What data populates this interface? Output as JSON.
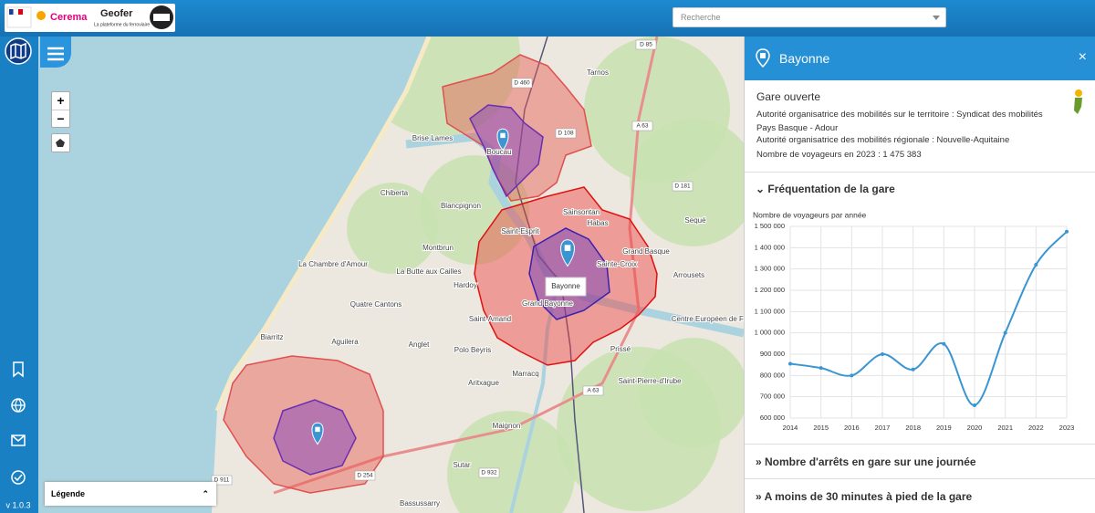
{
  "header": {
    "logo_left": "Cerema",
    "logo_title": "Geofer",
    "logo_subtitle": "La plateforme du ferroviaire",
    "search_placeholder": "Recherche"
  },
  "sidebar": {
    "version": "v 1.0.3"
  },
  "map": {
    "zoom_in": "+",
    "zoom_out": "−",
    "legend": "Légende",
    "popup": "Bayonne",
    "labels": [
      "Tarnos",
      "Boucau",
      "Brise Lames",
      "Chiberta",
      "Blancpignon",
      "Montbrun",
      "La Chambre d'Amour",
      "La Butte aux Cailles",
      "Quatre Cantons",
      "Hardoy",
      "Biarritz",
      "Aguilera",
      "Anglet",
      "Polo Beyris",
      "Saint-Amand",
      "Marracq",
      "Aritxague",
      "Maignon",
      "Sutar",
      "Bassussarry",
      "Prissé",
      "Saint-Pierre-d'Irube",
      "Centre Européen de Fret",
      "Arrousets",
      "Sequé",
      "Grand Basque",
      "Sainte-Croix",
      "Habas",
      "Sainsontan",
      "Grand Bayonne",
      "Saint-Esprit"
    ],
    "roads": [
      "D 85",
      "D 460",
      "D 108",
      "A 63",
      "D 181",
      "D 911",
      "D 254",
      "D 932",
      "A 63"
    ]
  },
  "panel": {
    "title": "Bayonne",
    "close": "×",
    "status": "Gare ouverte",
    "info": [
      "Autorité organisatrice des mobilités sur le territoire : Syndicat des mobilités Pays Basque - Adour",
      "Autorité organisatrice des mobilités régionale : Nouvelle-Aquitaine",
      "Nombre de voyageurs en 2023 : 1 475 383"
    ],
    "section_open": "Fréquentation de la gare",
    "sections_closed": [
      "Nombre d'arrêts en gare sur une journée",
      "A moins de 30 minutes à pied de la gare"
    ]
  },
  "chart_data": {
    "type": "line",
    "title": "Nombre de voyageurs par année",
    "x": [
      2014,
      2015,
      2016,
      2017,
      2018,
      2019,
      2020,
      2021,
      2022,
      2023
    ],
    "series": [
      {
        "name": "Nombre de voyageurs",
        "color": "#3a95d3",
        "values": [
          855000,
          835000,
          800000,
          900000,
          828000,
          948000,
          660000,
          1000000,
          1320000,
          1475383
        ]
      }
    ],
    "xlim": [
      2014,
      2023
    ],
    "xticks": [
      2014,
      2015,
      2016,
      2017,
      2018,
      2019,
      2020,
      2021,
      2022,
      2023
    ],
    "ylim": [
      600000,
      1500000
    ],
    "yticks": [
      {
        "value": 600000,
        "label": "600 000"
      },
      {
        "value": 700000,
        "label": "700 000"
      },
      {
        "value": 800000,
        "label": "800 000"
      },
      {
        "value": 900000,
        "label": "900 000"
      },
      {
        "value": 1000000,
        "label": "1 000 000"
      },
      {
        "value": 1100000,
        "label": "1 100 000"
      },
      {
        "value": 1200000,
        "label": "1 200 000"
      },
      {
        "value": 1300000,
        "label": "1 300 000"
      },
      {
        "value": 1400000,
        "label": "1 400 000"
      },
      {
        "value": 1500000,
        "label": "1 500 000"
      }
    ],
    "grid": true,
    "smooth": true
  }
}
